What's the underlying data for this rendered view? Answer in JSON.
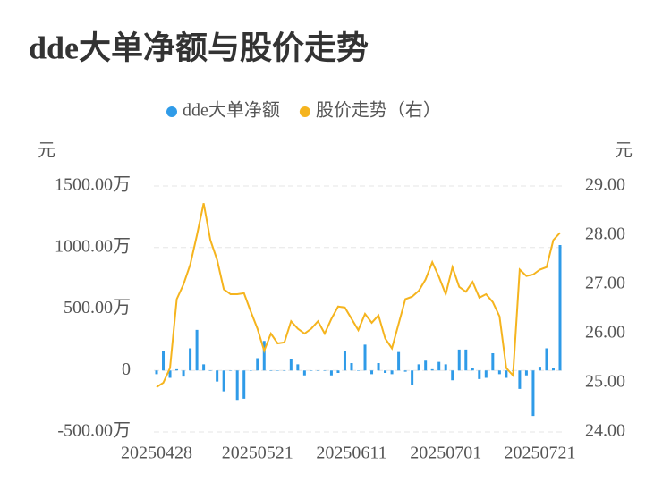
{
  "chart_data": {
    "type": "bar_line",
    "title": "dde大单净额与股价走势",
    "y_unit": "元",
    "y2_unit": "元",
    "categories": [
      "20250428",
      null,
      null,
      null,
      null,
      null,
      null,
      null,
      null,
      null,
      null,
      null,
      null,
      null,
      null,
      "20250521",
      null,
      null,
      null,
      null,
      null,
      null,
      null,
      null,
      null,
      null,
      null,
      null,
      null,
      "20250611",
      null,
      null,
      null,
      null,
      null,
      null,
      null,
      null,
      null,
      null,
      null,
      null,
      null,
      "20250701",
      null,
      null,
      null,
      null,
      null,
      null,
      null,
      null,
      null,
      null,
      null,
      null,
      null,
      "20250721",
      null,
      null,
      null
    ],
    "series": [
      {
        "name": "dde大单净额",
        "color": "#2f9be8",
        "type": "bar",
        "values": [
          -30,
          160,
          -60,
          10,
          -50,
          180,
          330,
          50,
          0,
          -90,
          -170,
          0,
          -240,
          -230,
          0,
          100,
          240,
          0,
          0,
          0,
          90,
          50,
          -40,
          0,
          0,
          0,
          -40,
          -20,
          160,
          60,
          0,
          210,
          -30,
          60,
          -20,
          -30,
          150,
          -10,
          -120,
          50,
          80,
          10,
          70,
          50,
          -80,
          170,
          170,
          20,
          -70,
          -60,
          140,
          -30,
          -60,
          0,
          -150,
          -40,
          -370,
          30,
          180,
          20,
          1020
        ]
      },
      {
        "name": "股价走势（右）",
        "color": "#f5b41e",
        "type": "line",
        "axis": "y2",
        "values": [
          24.91,
          25.0,
          25.3,
          26.7,
          27.0,
          27.4,
          28.0,
          28.65,
          27.9,
          27.5,
          26.9,
          26.8,
          26.8,
          26.82,
          26.45,
          26.1,
          25.65,
          26.0,
          25.8,
          25.82,
          26.25,
          26.1,
          26.0,
          26.1,
          26.25,
          26.0,
          26.3,
          26.55,
          26.53,
          26.3,
          26.07,
          26.4,
          26.22,
          26.37,
          25.9,
          25.7,
          26.2,
          26.7,
          26.75,
          26.87,
          27.1,
          27.45,
          27.15,
          26.8,
          27.35,
          26.95,
          26.85,
          27.05,
          26.73,
          26.8,
          26.64,
          26.35,
          25.3,
          25.15,
          27.3,
          27.17,
          27.2,
          27.3,
          27.35,
          27.9,
          28.05
        ]
      }
    ],
    "ylim": [
      -500,
      1500
    ],
    "yticks": [
      {
        "value": 1500,
        "label": "1500.00万"
      },
      {
        "value": 1000,
        "label": "1000.00万"
      },
      {
        "value": 500,
        "label": "500.00万"
      },
      0,
      {
        "value": -500,
        "label": "-500.00万"
      }
    ],
    "y2lim": [
      24,
      29
    ],
    "y2ticks": [
      {
        "value": 29,
        "label": "29.00"
      },
      {
        "value": 28,
        "label": "28.00"
      },
      {
        "value": 27,
        "label": "27.00"
      },
      {
        "value": 26,
        "label": "26.00"
      },
      {
        "value": 25,
        "label": "25.00"
      },
      {
        "value": 24,
        "label": "24.00"
      }
    ],
    "grid": true
  }
}
